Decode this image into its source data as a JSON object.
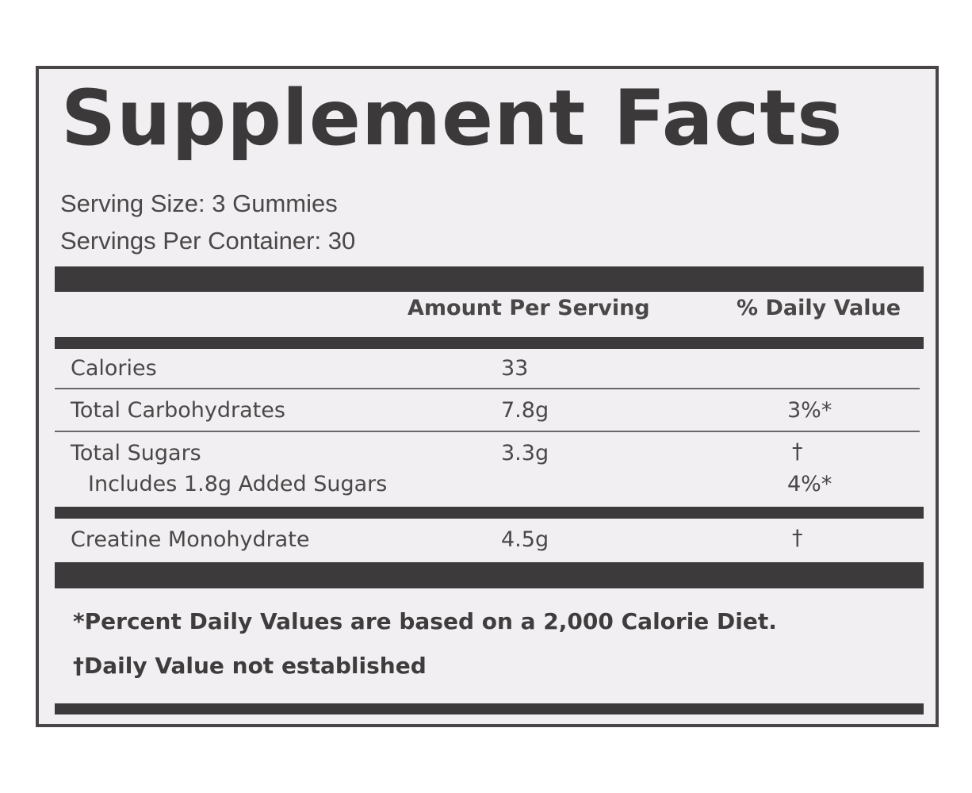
{
  "label": {
    "title": "Supplement Facts",
    "serving_size": "Serving Size: 3 Gummies",
    "servings_per_container": "Servings Per Container: 30",
    "columns": {
      "amount": "Amount Per Serving",
      "daily_value": "% Daily Value"
    },
    "rows": [
      {
        "name": "Calories",
        "amount": "33",
        "dv": ""
      },
      {
        "name": "Total Carbohydrates",
        "amount": "7.8g",
        "dv": "3%*"
      },
      {
        "name": "Total Sugars",
        "amount": "3.3g",
        "dv": "†"
      },
      {
        "name": "Includes 1.8g Added Sugars",
        "amount": "",
        "dv": "4%*"
      },
      {
        "name": "Creatine Monohydrate",
        "amount": "4.5g",
        "dv": "†"
      }
    ],
    "footnotes": [
      "*Percent Daily Values are based on a 2,000 Calorie Diet.",
      "†Daily Value not established"
    ]
  }
}
